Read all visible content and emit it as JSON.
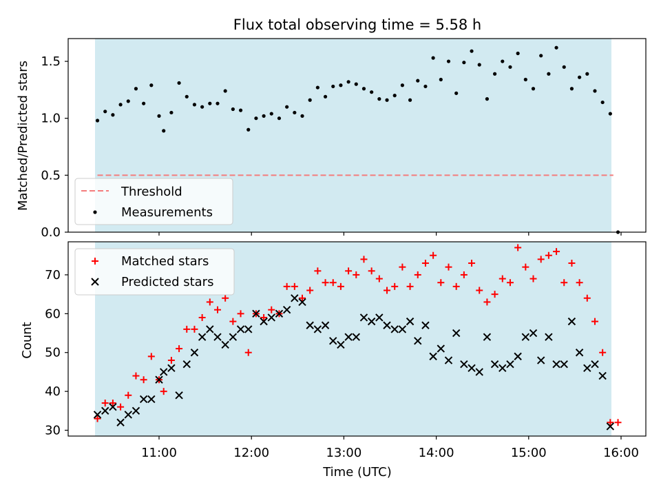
{
  "chart_data": [
    {
      "type": "scatter",
      "title": "Flux total observing time = 5.58 h",
      "xlabel": "",
      "ylabel": "Matched/Predicted stars",
      "ylim": [
        0,
        1.7
      ],
      "yticks": [
        "0.0",
        "0.5",
        "1.0",
        "1.5"
      ],
      "threshold": {
        "name": "Threshold",
        "value": 0.5,
        "color": "#f47c7c"
      },
      "shaded_color": "#add8e6",
      "legend_position": "lower-left",
      "series": [
        {
          "name": "Measurements",
          "color": "#000000",
          "x": [
            "10:20",
            "10:25",
            "10:30",
            "10:35",
            "10:40",
            "10:45",
            "10:50",
            "10:55",
            "11:00",
            "11:03",
            "11:08",
            "11:13",
            "11:18",
            "11:23",
            "11:28",
            "11:33",
            "11:38",
            "11:43",
            "11:48",
            "11:53",
            "11:58",
            "12:03",
            "12:08",
            "12:13",
            "12:18",
            "12:23",
            "12:28",
            "12:33",
            "12:38",
            "12:43",
            "12:48",
            "12:53",
            "12:58",
            "13:03",
            "13:08",
            "13:13",
            "13:18",
            "13:23",
            "13:28",
            "13:33",
            "13:38",
            "13:43",
            "13:48",
            "13:53",
            "13:58",
            "14:03",
            "14:08",
            "14:13",
            "14:18",
            "14:23",
            "14:28",
            "14:33",
            "14:38",
            "14:43",
            "14:48",
            "14:53",
            "14:58",
            "15:03",
            "15:08",
            "15:13",
            "15:18",
            "15:23",
            "15:28",
            "15:33",
            "15:38",
            "15:43",
            "15:48",
            "15:53",
            "15:58"
          ],
          "y": [
            0.98,
            1.06,
            1.03,
            1.12,
            1.15,
            1.26,
            1.13,
            1.29,
            1.02,
            0.89,
            1.05,
            1.31,
            1.19,
            1.12,
            1.1,
            1.13,
            1.13,
            1.24,
            1.08,
            1.07,
            0.9,
            1.0,
            1.02,
            1.04,
            1.0,
            1.1,
            1.05,
            1.02,
            1.16,
            1.27,
            1.19,
            1.28,
            1.29,
            1.32,
            1.3,
            1.26,
            1.23,
            1.17,
            1.16,
            1.2,
            1.29,
            1.16,
            1.33,
            1.28,
            1.53,
            1.34,
            1.5,
            1.22,
            1.49,
            1.59,
            1.47,
            1.17,
            1.39,
            1.5,
            1.45,
            1.57,
            1.34,
            1.26,
            1.55,
            1.39,
            1.62,
            1.45,
            1.26,
            1.36,
            1.39,
            1.24,
            1.14,
            1.04,
            0.0
          ]
        }
      ]
    },
    {
      "type": "scatter",
      "title": "",
      "xlabel": "Time (UTC)",
      "ylabel": "Count",
      "ylim": [
        28.5,
        78.5
      ],
      "yticks": [
        "30",
        "40",
        "50",
        "60",
        "70"
      ],
      "xticks": [
        "11:00",
        "12:00",
        "13:00",
        "14:00",
        "15:00",
        "16:00"
      ],
      "legend_position": "upper-left",
      "series": [
        {
          "name": "Matched stars",
          "marker": "plus",
          "color": "#ff0000",
          "x": [
            "10:20",
            "10:25",
            "10:30",
            "10:35",
            "10:40",
            "10:45",
            "10:50",
            "10:55",
            "11:00",
            "11:03",
            "11:08",
            "11:13",
            "11:18",
            "11:23",
            "11:28",
            "11:33",
            "11:38",
            "11:43",
            "11:48",
            "11:53",
            "11:58",
            "12:03",
            "12:08",
            "12:13",
            "12:18",
            "12:23",
            "12:28",
            "12:33",
            "12:38",
            "12:43",
            "12:48",
            "12:53",
            "12:58",
            "13:03",
            "13:08",
            "13:13",
            "13:18",
            "13:23",
            "13:28",
            "13:33",
            "13:38",
            "13:43",
            "13:48",
            "13:53",
            "13:58",
            "14:03",
            "14:08",
            "14:13",
            "14:18",
            "14:23",
            "14:28",
            "14:33",
            "14:38",
            "14:43",
            "14:48",
            "14:53",
            "14:58",
            "15:03",
            "15:08",
            "15:13",
            "15:18",
            "15:23",
            "15:28",
            "15:33",
            "15:38",
            "15:43",
            "15:48",
            "15:53",
            "15:58"
          ],
          "y": [
            33,
            37,
            37,
            36,
            39,
            44,
            43,
            49,
            43,
            40,
            48,
            51,
            56,
            56,
            59,
            63,
            61,
            64,
            58,
            60,
            50,
            60,
            59,
            61,
            60,
            67,
            67,
            64,
            66,
            71,
            68,
            68,
            67,
            71,
            70,
            74,
            71,
            69,
            66,
            67,
            72,
            67,
            70,
            73,
            75,
            68,
            72,
            67,
            70,
            73,
            66,
            63,
            65,
            69,
            68,
            77,
            72,
            69,
            74,
            75,
            76,
            68,
            73,
            68,
            64,
            58,
            50,
            32,
            32
          ]
        },
        {
          "name": "Predicted stars",
          "marker": "x",
          "color": "#000000",
          "x": [
            "10:20",
            "10:25",
            "10:30",
            "10:35",
            "10:40",
            "10:45",
            "10:50",
            "10:55",
            "11:00",
            "11:03",
            "11:08",
            "11:13",
            "11:18",
            "11:23",
            "11:28",
            "11:33",
            "11:38",
            "11:43",
            "11:48",
            "11:53",
            "11:58",
            "12:03",
            "12:08",
            "12:13",
            "12:18",
            "12:23",
            "12:28",
            "12:33",
            "12:38",
            "12:43",
            "12:48",
            "12:53",
            "12:58",
            "13:03",
            "13:08",
            "13:13",
            "13:18",
            "13:23",
            "13:28",
            "13:33",
            "13:38",
            "13:43",
            "13:48",
            "13:53",
            "13:58",
            "14:03",
            "14:08",
            "14:13",
            "14:18",
            "14:23",
            "14:28",
            "14:33",
            "14:38",
            "14:43",
            "14:48",
            "14:53",
            "14:58",
            "15:03",
            "15:08",
            "15:13",
            "15:18",
            "15:23",
            "15:28",
            "15:33",
            "15:38",
            "15:43",
            "15:48",
            "15:53"
          ],
          "y": [
            34,
            35,
            36,
            32,
            34,
            35,
            38,
            38,
            43,
            45,
            46,
            39,
            47,
            50,
            54,
            56,
            54,
            52,
            54,
            56,
            56,
            60,
            58,
            59,
            60,
            61,
            64,
            63,
            57,
            56,
            57,
            53,
            52,
            54,
            54,
            59,
            58,
            59,
            57,
            56,
            56,
            58,
            53,
            57,
            49,
            51,
            48,
            55,
            47,
            46,
            45,
            54,
            47,
            46,
            47,
            49,
            54,
            55,
            48,
            54,
            47,
            47,
            58,
            50,
            46,
            47,
            44,
            31
          ]
        }
      ]
    }
  ]
}
